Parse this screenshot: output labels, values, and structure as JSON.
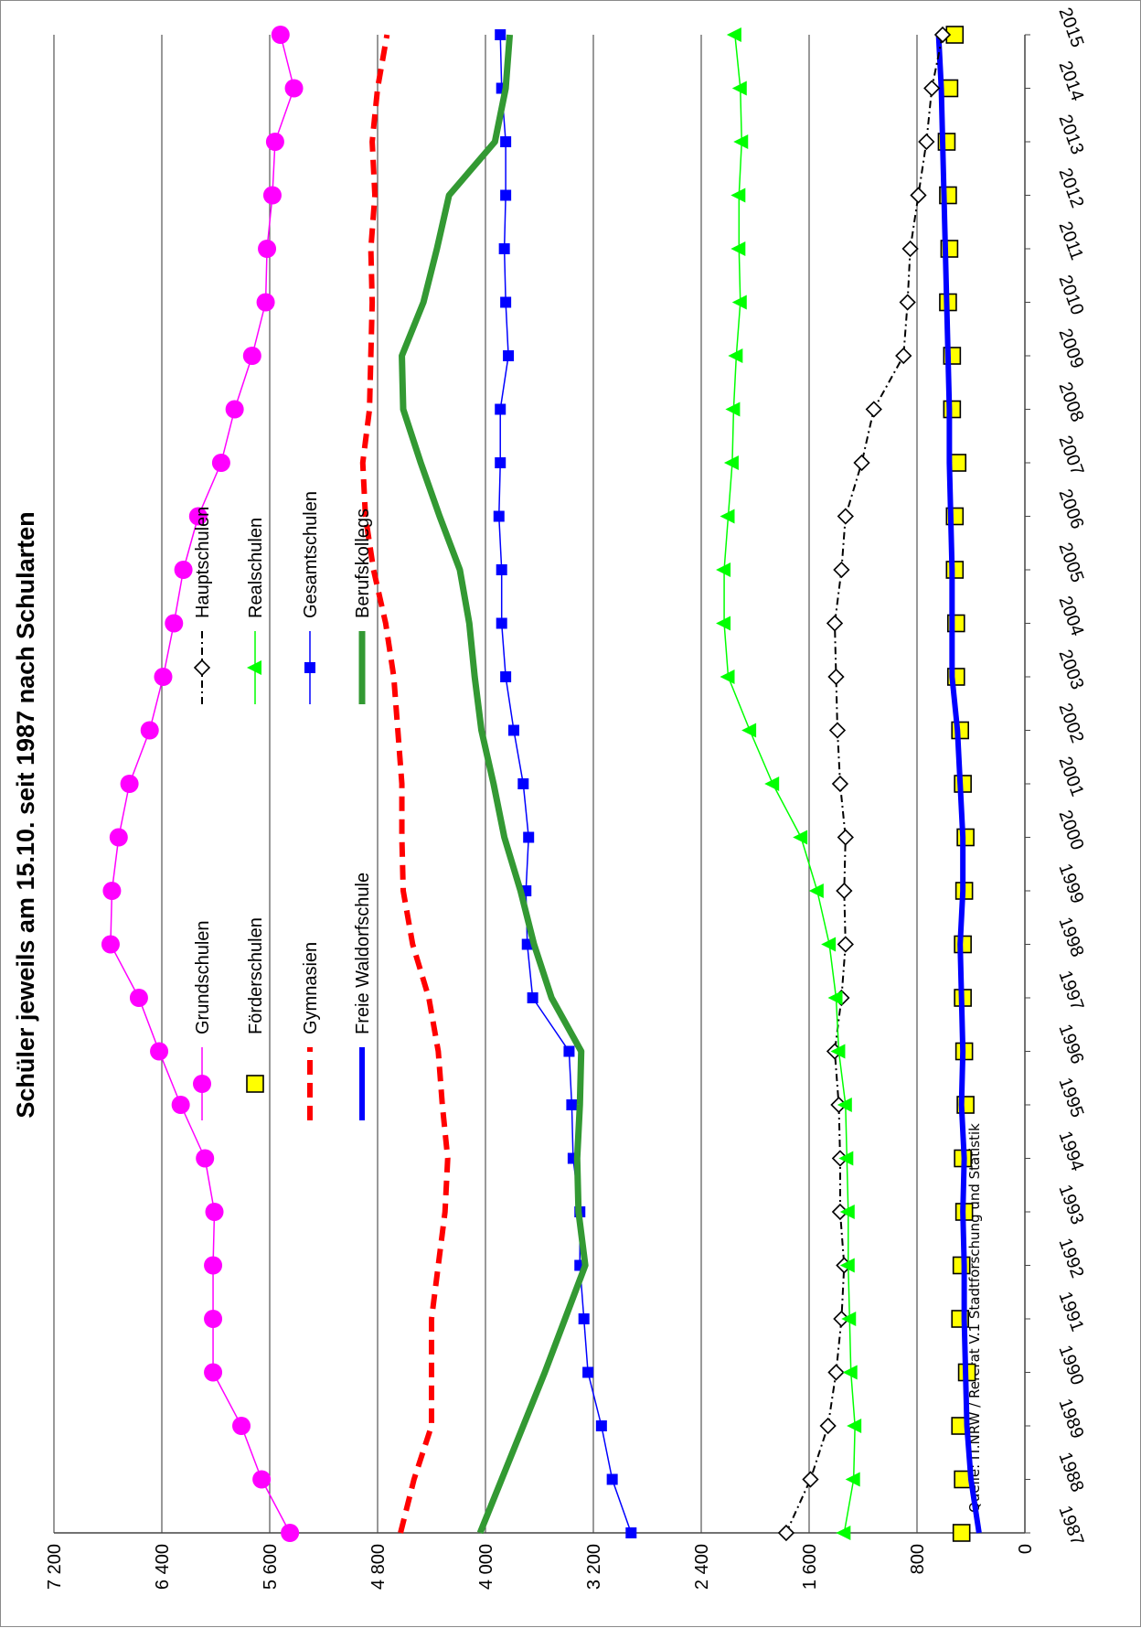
{
  "chart_data": {
    "type": "line",
    "title": "Schüler jeweils am 15.10. seit 1987 nach Schularten",
    "source": "Quelle: IT.NRW /  Referat V.1 Stadtforschung und Statistik",
    "x": [
      "1987",
      "1988",
      "1989",
      "1990",
      "1991",
      "1992",
      "1993",
      "1994",
      "1995",
      "1996",
      "1997",
      "1998",
      "1999",
      "2000",
      "2001",
      "2002",
      "2003",
      "2004",
      "2005",
      "2006",
      "2007",
      "2008",
      "2009",
      "2010",
      "2011",
      "2012",
      "2013",
      "2014",
      "2015"
    ],
    "ylim": [
      0,
      7200
    ],
    "yticks": [
      0,
      800,
      1600,
      2400,
      3200,
      4000,
      4800,
      5600,
      6400,
      7200
    ],
    "ytick_labels": [
      "0",
      "800",
      "1 600",
      "2 400",
      "3 200",
      "4 000",
      "4 800",
      "5 600",
      "6 400",
      "7 200"
    ],
    "grid": true,
    "legend_position": "top-left",
    "series": [
      {
        "name": "Grundschulen",
        "color": "#ff00ff",
        "style": "thin-line-dot",
        "values": [
          5450,
          5660,
          5810,
          6020,
          6020,
          6020,
          6010,
          6080,
          6260,
          6420,
          6570,
          6780,
          6770,
          6720,
          6640,
          6490,
          6390,
          6310,
          6240,
          6130,
          5960,
          5860,
          5730,
          5630,
          5620,
          5580,
          5560,
          5420,
          5520
        ]
      },
      {
        "name": "Förderschulen",
        "color": "#ffff00",
        "style": "square-markers",
        "values": [
          470,
          460,
          480,
          430,
          480,
          470,
          450,
          460,
          440,
          450,
          460,
          460,
          450,
          440,
          460,
          480,
          510,
          510,
          520,
          520,
          500,
          540,
          540,
          570,
          560,
          570,
          580,
          560,
          520
        ]
      },
      {
        "name": "Gymnasien",
        "color": "#ff0000",
        "style": "thick-dash",
        "values": [
          4630,
          4530,
          4400,
          4400,
          4400,
          4350,
          4300,
          4280,
          4320,
          4350,
          4420,
          4540,
          4610,
          4620,
          4620,
          4650,
          4680,
          4740,
          4830,
          4890,
          4910,
          4860,
          4850,
          4840,
          4850,
          4820,
          4840,
          4800,
          4730
        ]
      },
      {
        "name": "Freie Waldorfschule",
        "color": "#0000ff",
        "style": "thick-line",
        "values": [
          340,
          400,
          430,
          440,
          450,
          450,
          460,
          450,
          470,
          460,
          470,
          480,
          460,
          460,
          480,
          500,
          540,
          540,
          540,
          550,
          560,
          560,
          570,
          580,
          590,
          600,
          610,
          620,
          640
        ]
      },
      {
        "name": "Hauptschulen",
        "color": "#000000",
        "style": "dash-dot-diamond",
        "values": [
          1770,
          1590,
          1460,
          1400,
          1360,
          1340,
          1370,
          1370,
          1380,
          1410,
          1360,
          1330,
          1340,
          1330,
          1370,
          1390,
          1400,
          1410,
          1360,
          1330,
          1210,
          1120,
          900,
          870,
          850,
          790,
          730,
          690,
          610
        ]
      },
      {
        "name": "Realschulen",
        "color": "#00ff00",
        "style": "thin-line-triangle",
        "values": [
          1340,
          1270,
          1260,
          1290,
          1300,
          1310,
          1310,
          1320,
          1330,
          1380,
          1400,
          1450,
          1540,
          1660,
          1870,
          2040,
          2200,
          2230,
          2230,
          2200,
          2170,
          2160,
          2140,
          2110,
          2120,
          2120,
          2100,
          2110,
          2150
        ]
      },
      {
        "name": "Gesamtschulen",
        "color": "#0000ff",
        "style": "thin-line-square",
        "values": [
          2920,
          3060,
          3140,
          3240,
          3270,
          3300,
          3300,
          3350,
          3360,
          3380,
          3650,
          3690,
          3700,
          3680,
          3720,
          3790,
          3850,
          3880,
          3880,
          3900,
          3890,
          3890,
          3830,
          3850,
          3860,
          3850,
          3850,
          3880,
          3890
        ]
      },
      {
        "name": "Berufskollegs",
        "color": "#339933",
        "style": "thick-line",
        "values": [
          4040,
          3880,
          3720,
          3560,
          3410,
          3260,
          3310,
          3320,
          3300,
          3290,
          3510,
          3640,
          3740,
          3860,
          3940,
          4030,
          4080,
          4120,
          4190,
          4340,
          4480,
          4610,
          4620,
          4460,
          4360,
          4270,
          3930,
          3850,
          3820
        ]
      }
    ]
  }
}
